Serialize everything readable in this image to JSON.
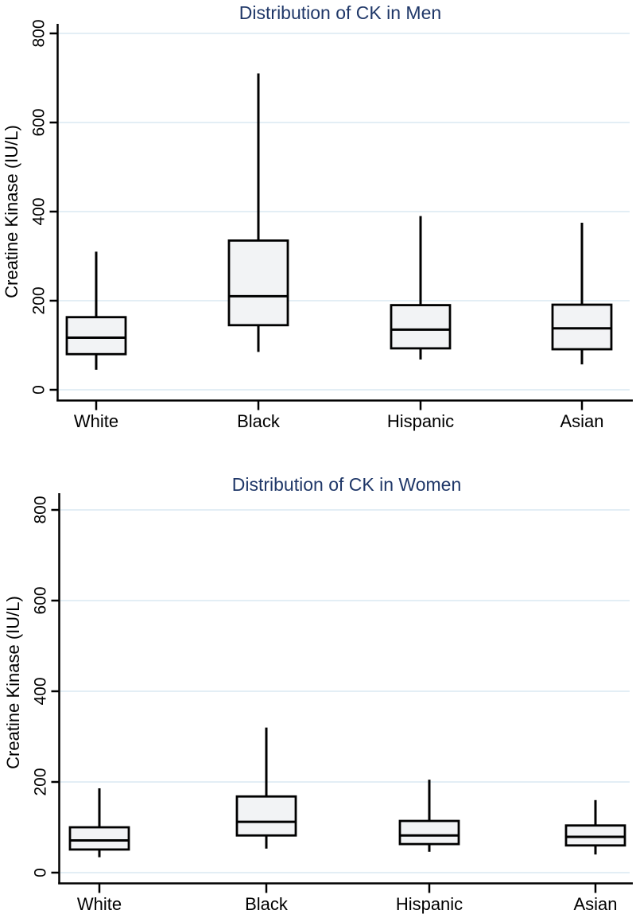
{
  "page": {
    "background": "#ffffff"
  },
  "colors": {
    "title": "#1f3768",
    "grid": "#e3eef5",
    "box_fill": "#f2f3f5",
    "stroke": "#000000",
    "text": "#000000"
  },
  "chart_data": [
    {
      "type": "boxplot",
      "title": "Distribution of CK in Men",
      "ylabel": "Creatine Kinase (IU/L)",
      "xlabel": "",
      "categories": [
        "White",
        "Black",
        "Hispanic",
        "Asian"
      ],
      "y_ticks": [
        0,
        200,
        400,
        600,
        800
      ],
      "ylim": [
        0,
        820
      ],
      "grid": true,
      "legend": "none",
      "series": [
        {
          "category": "White",
          "whisker_low": 45,
          "q1": 80,
          "median": 117,
          "q3": 163,
          "whisker_high": 310
        },
        {
          "category": "Black",
          "whisker_low": 85,
          "q1": 145,
          "median": 210,
          "q3": 335,
          "whisker_high": 710
        },
        {
          "category": "Hispanic",
          "whisker_low": 68,
          "q1": 93,
          "median": 135,
          "q3": 190,
          "whisker_high": 390
        },
        {
          "category": "Asian",
          "whisker_low": 57,
          "q1": 91,
          "median": 138,
          "q3": 191,
          "whisker_high": 375
        }
      ]
    },
    {
      "type": "boxplot",
      "title": "Distribution of CK in Women",
      "ylabel": "Creatine Kinase (IU/L)",
      "xlabel": "",
      "categories": [
        "White",
        "Black",
        "Hispanic",
        "Asian"
      ],
      "y_ticks": [
        0,
        200,
        400,
        600,
        800
      ],
      "ylim": [
        0,
        835
      ],
      "grid": true,
      "legend": "none",
      "series": [
        {
          "category": "White",
          "whisker_low": 34,
          "q1": 51,
          "median": 71,
          "q3": 100,
          "whisker_high": 186
        },
        {
          "category": "Black",
          "whisker_low": 53,
          "q1": 82,
          "median": 112,
          "q3": 168,
          "whisker_high": 320
        },
        {
          "category": "Hispanic",
          "whisker_low": 46,
          "q1": 63,
          "median": 82,
          "q3": 114,
          "whisker_high": 205
        },
        {
          "category": "Asian",
          "whisker_low": 40,
          "q1": 60,
          "median": 79,
          "q3": 104,
          "whisker_high": 160
        }
      ]
    }
  ]
}
